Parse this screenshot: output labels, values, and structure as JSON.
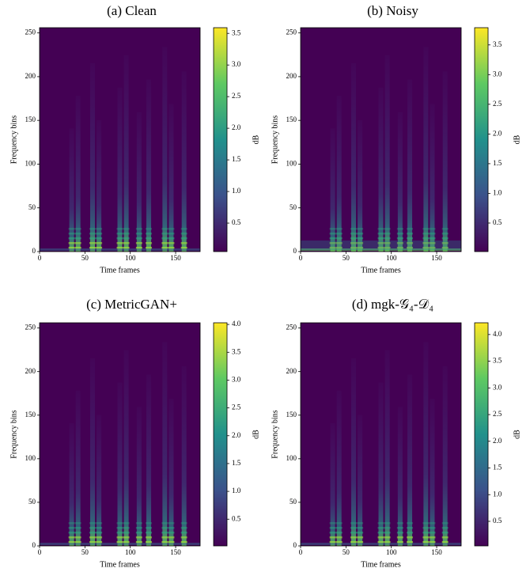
{
  "chart_data": [
    {
      "type": "heatmap",
      "title": "(a) Clean",
      "xlabel": "Time frames",
      "ylabel": "Frequency bins",
      "xlim": [
        0,
        177
      ],
      "ylim": [
        0,
        256
      ],
      "xticks": [
        0,
        50,
        100,
        150
      ],
      "yticks": [
        0,
        50,
        100,
        150,
        200,
        250
      ],
      "colorbar": {
        "label": "dB",
        "lim": [
          0.05,
          3.59
        ],
        "ticks": [
          0.5,
          {
            "value": 1,
            "label": "1.0"
          },
          1.5,
          {
            "value": 2,
            "label": "2.0"
          },
          2.5,
          {
            "value": 3,
            "label": "3.0"
          },
          3.5
        ]
      }
    },
    {
      "type": "heatmap",
      "title": "(b) Noisy",
      "xlabel": "Time frames",
      "ylabel": "Frequency bins",
      "xlim": [
        0,
        177
      ],
      "ylim": [
        0,
        256
      ],
      "xticks": [
        0,
        50,
        100,
        150
      ],
      "yticks": [
        0,
        50,
        100,
        150,
        200,
        250
      ],
      "colorbar": {
        "label": "dB",
        "lim": [
          0.02,
          3.79
        ],
        "ticks": [
          0.5,
          {
            "value": 1,
            "label": "1.0"
          },
          1.5,
          {
            "value": 2,
            "label": "2.0"
          },
          2.5,
          {
            "value": 3,
            "label": "3.0"
          },
          3.5
        ]
      }
    },
    {
      "type": "heatmap",
      "title": "(c) MetricGAN+",
      "xlabel": "Time frames",
      "ylabel": "Frequency bins",
      "xlim": [
        0,
        177
      ],
      "ylim": [
        0,
        256
      ],
      "xticks": [
        0,
        50,
        100,
        150
      ],
      "yticks": [
        0,
        50,
        100,
        150,
        200,
        250
      ],
      "colorbar": {
        "label": "dB",
        "lim": [
          0.02,
          4.03
        ],
        "ticks": [
          0.5,
          {
            "value": 1,
            "label": "1.0"
          },
          1.5,
          {
            "value": 2,
            "label": "2.0"
          },
          2.5,
          {
            "value": 3,
            "label": "3.0"
          },
          3.5,
          {
            "value": 4,
            "label": "4.0"
          }
        ]
      }
    },
    {
      "type": "heatmap",
      "title": "(d) mgk-𝒢₄-𝒟₄",
      "xlabel": "Time frames",
      "ylabel": "Frequency bins",
      "xlim": [
        0,
        177
      ],
      "ylim": [
        0,
        256
      ],
      "xticks": [
        0,
        50,
        100,
        150
      ],
      "yticks": [
        0,
        50,
        100,
        150,
        200,
        250
      ],
      "colorbar": {
        "label": "dB",
        "lim": [
          0.04,
          4.22
        ],
        "ticks": [
          0.5,
          {
            "value": 1,
            "label": "1.0"
          },
          1.5,
          {
            "value": 2,
            "label": "2.0"
          },
          2.5,
          {
            "value": 3,
            "label": "3.0"
          },
          3.5,
          {
            "value": 4,
            "label": "4.0"
          }
        ]
      }
    }
  ]
}
